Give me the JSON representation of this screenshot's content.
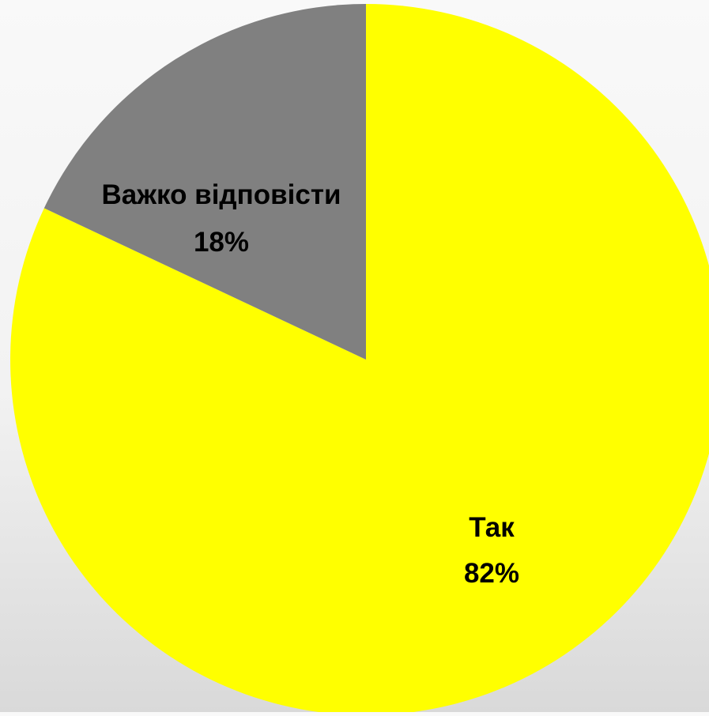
{
  "chart_data": {
    "type": "pie",
    "title": "",
    "slices": [
      {
        "label": "Так",
        "value": 82,
        "value_label": "82%",
        "color": "#FFFF00"
      },
      {
        "label": "Важко відповісти",
        "value": 18,
        "value_label": "18%",
        "color": "#808080"
      }
    ],
    "start_angle": "12 o'clock",
    "direction": "clockwise",
    "legend": "none",
    "data_labels": "inside"
  }
}
